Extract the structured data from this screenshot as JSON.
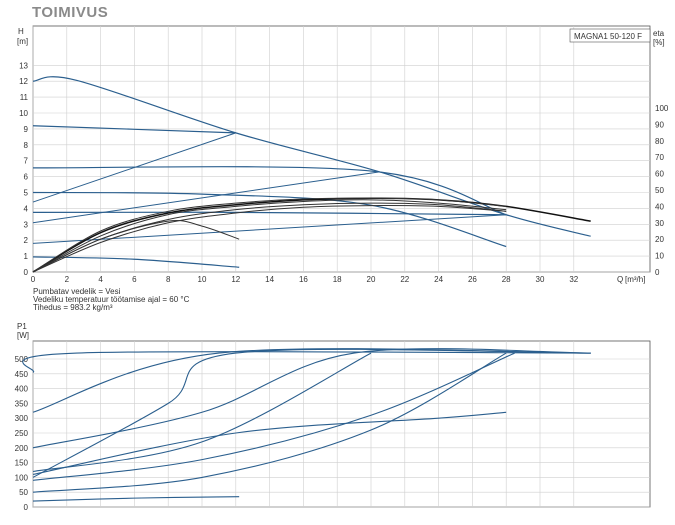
{
  "page_title": "TOIMIVUS",
  "chart_data": [
    {
      "type": "line",
      "title": "MAGNA1 50-120 F",
      "ylabel": "H",
      "yunit": "[m]",
      "y2label": "eta",
      "y2unit": "[%]",
      "xlabel": "Q",
      "xunit": "[m³/h]",
      "xlim": [
        0,
        36
      ],
      "ylim": [
        0,
        14
      ],
      "y2lim": [
        0,
        100
      ],
      "xticks": [
        0,
        2,
        4,
        6,
        8,
        10,
        12,
        14,
        16,
        18,
        20,
        22,
        24,
        26,
        28,
        30,
        32
      ],
      "yticks": [
        0,
        1,
        2,
        3,
        4,
        5,
        6,
        7,
        8,
        9,
        10,
        11,
        12,
        13
      ],
      "y2ticks": [
        0,
        10,
        20,
        30,
        40,
        50,
        60,
        70,
        80,
        90,
        100
      ],
      "grid": true,
      "notes": [
        "Pumbatav vedelik = Vesi",
        "Vedeliku temperatuur töötamise ajal = 60 °C",
        "Tihedus = 983.2 kg/m³"
      ],
      "pump_curves": [
        {
          "x": [
            0,
            2.6,
            12,
            20.5,
            28,
            33
          ],
          "y": [
            12,
            12.05,
            8.75,
            6.3,
            3.6,
            2.25
          ]
        },
        {
          "x": [
            0,
            12
          ],
          "y": [
            9.2,
            8.75
          ]
        },
        {
          "x": [
            0,
            20,
            28
          ],
          "y": [
            6.55,
            6.35,
            3.6
          ]
        },
        {
          "x": [
            0,
            10,
            20,
            28
          ],
          "y": [
            5.0,
            4.9,
            4.2,
            1.6
          ]
        },
        {
          "x": [
            0,
            12,
            28
          ],
          "y": [
            3.75,
            3.75,
            3.6
          ]
        },
        {
          "x": [
            0,
            6,
            12.2
          ],
          "y": [
            0.95,
            0.8,
            0.3
          ]
        }
      ],
      "system_curves": [
        {
          "x": [
            0,
            12
          ],
          "y": [
            4.4,
            8.75
          ]
        },
        {
          "x": [
            0,
            20.5
          ],
          "y": [
            3.1,
            6.3
          ]
        },
        {
          "x": [
            0,
            28
          ],
          "y": [
            1.8,
            3.6
          ]
        }
      ],
      "efficiency_curves": [
        {
          "x": [
            0,
            4,
            8,
            12,
            16,
            20,
            24,
            28,
            33
          ],
          "y": [
            0,
            24,
            36,
            41,
            44,
            45,
            44,
            40,
            31
          ]
        },
        {
          "x": [
            0,
            4,
            8,
            12,
            16,
            20,
            24,
            28
          ],
          "y": [
            0,
            25,
            37,
            42,
            44.5,
            45,
            44,
            40
          ]
        },
        {
          "x": [
            0,
            4,
            8,
            12,
            16,
            20,
            24,
            28
          ],
          "y": [
            0,
            22,
            35,
            40,
            43,
            44,
            42,
            38
          ]
        },
        {
          "x": [
            0,
            4,
            8,
            12,
            16,
            20,
            24,
            28
          ],
          "y": [
            0,
            20,
            32,
            38,
            41,
            42,
            41,
            37
          ]
        },
        {
          "x": [
            0,
            4,
            8,
            12,
            16,
            20,
            24,
            28
          ],
          "y": [
            0,
            18,
            30,
            36,
            39.5,
            40.5,
            40,
            37
          ]
        },
        {
          "x": [
            0,
            4,
            8,
            10,
            12.2
          ],
          "y": [
            0,
            20,
            31,
            28,
            20
          ]
        }
      ]
    },
    {
      "type": "line",
      "ylabel": "P1",
      "yunit": "[W]",
      "xlim": [
        0,
        36
      ],
      "ylim": [
        0,
        560
      ],
      "yticks": [
        0,
        50,
        100,
        150,
        200,
        250,
        300,
        350,
        400,
        450,
        500
      ],
      "grid": true,
      "series": [
        {
          "x": [
            0,
            2.6,
            33
          ],
          "y": [
            455,
            520,
            520
          ]
        },
        {
          "x": [
            0,
            11,
            33
          ],
          "y": [
            320,
            520,
            520
          ]
        },
        {
          "x": [
            0,
            8,
            12,
            33
          ],
          "y": [
            100,
            350,
            520,
            520
          ]
        },
        {
          "x": [
            0,
            10,
            19,
            33
          ],
          "y": [
            200,
            320,
            520,
            520
          ]
        },
        {
          "x": [
            0,
            10,
            20
          ],
          "y": [
            120,
            220,
            520
          ]
        },
        {
          "x": [
            0,
            12,
            24,
            28
          ],
          "y": [
            110,
            250,
            300,
            320
          ]
        },
        {
          "x": [
            0,
            10,
            20,
            28.5
          ],
          "y": [
            90,
            160,
            310,
            520
          ]
        },
        {
          "x": [
            0,
            10,
            20,
            28
          ],
          "y": [
            50,
            100,
            260,
            520
          ]
        },
        {
          "x": [
            0,
            6,
            12.2
          ],
          "y": [
            20,
            30,
            35
          ]
        }
      ]
    }
  ]
}
